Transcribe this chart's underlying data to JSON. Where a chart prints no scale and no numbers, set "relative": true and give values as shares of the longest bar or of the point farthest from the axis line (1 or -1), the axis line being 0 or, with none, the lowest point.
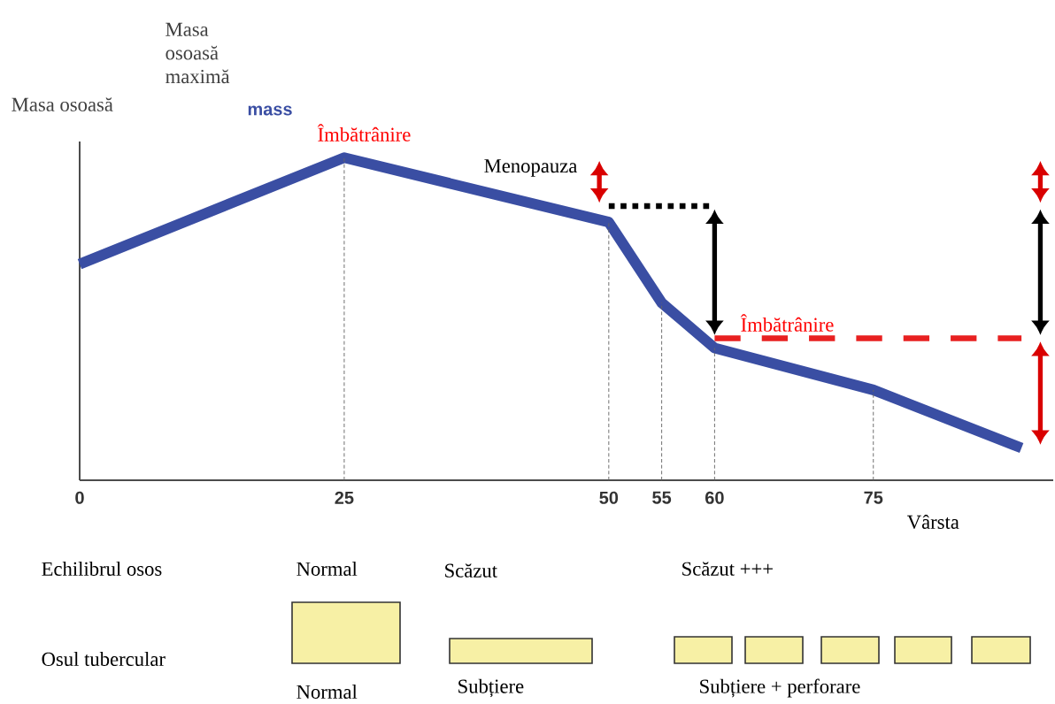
{
  "chart_data": {
    "type": "line",
    "relative": true,
    "ylabel": "Masa osoasă",
    "xlabel": "Vârsta",
    "xlim": [
      0,
      92
    ],
    "xticks": [
      0,
      25,
      50,
      55,
      60,
      75
    ],
    "series": [
      {
        "color": "#3a4ea3",
        "x": [
          0,
          25,
          50,
          55,
          60,
          75,
          89
        ],
        "values": [
          0.67,
          1,
          0.8,
          0.55,
          0.41,
          0.28,
          0.1
        ]
      },
      {
        "color": "#000000",
        "line_style": "dotted",
        "x": [
          50,
          60
        ],
        "values": [
          0.85,
          0.85
        ]
      },
      {
        "color": "#e82020",
        "line_style": "dashed",
        "x": [
          60,
          89
        ],
        "values": [
          0.44,
          0.44
        ]
      },
      {
        "color": "#666666",
        "line_style": "dashed",
        "x": [
          25,
          25
        ],
        "values": [
          0,
          1
        ]
      },
      {
        "color": "#666666",
        "line_style": "dashed",
        "x": [
          50,
          50
        ],
        "values": [
          0,
          0.8
        ]
      },
      {
        "color": "#666666",
        "line_style": "dashed",
        "x": [
          55,
          55
        ],
        "values": [
          0,
          0.55
        ]
      },
      {
        "color": "#666666",
        "line_style": "dashed",
        "x": [
          60,
          60
        ],
        "values": [
          0,
          0.41
        ]
      },
      {
        "color": "#666666",
        "line_style": "dashed",
        "x": [
          75,
          75
        ],
        "values": [
          0,
          0.28
        ]
      }
    ],
    "annotations": [
      "Masa osoasă maximă",
      "mass",
      "Îmbătrânire",
      "Menopauza",
      "Îmbătrânire",
      "Echilibrul osos",
      "Normal",
      "Scăzut",
      "Scăzut +++",
      "Osul tubercular",
      "Normal",
      "Subțiere",
      "Subțiere + perforare"
    ]
  }
}
